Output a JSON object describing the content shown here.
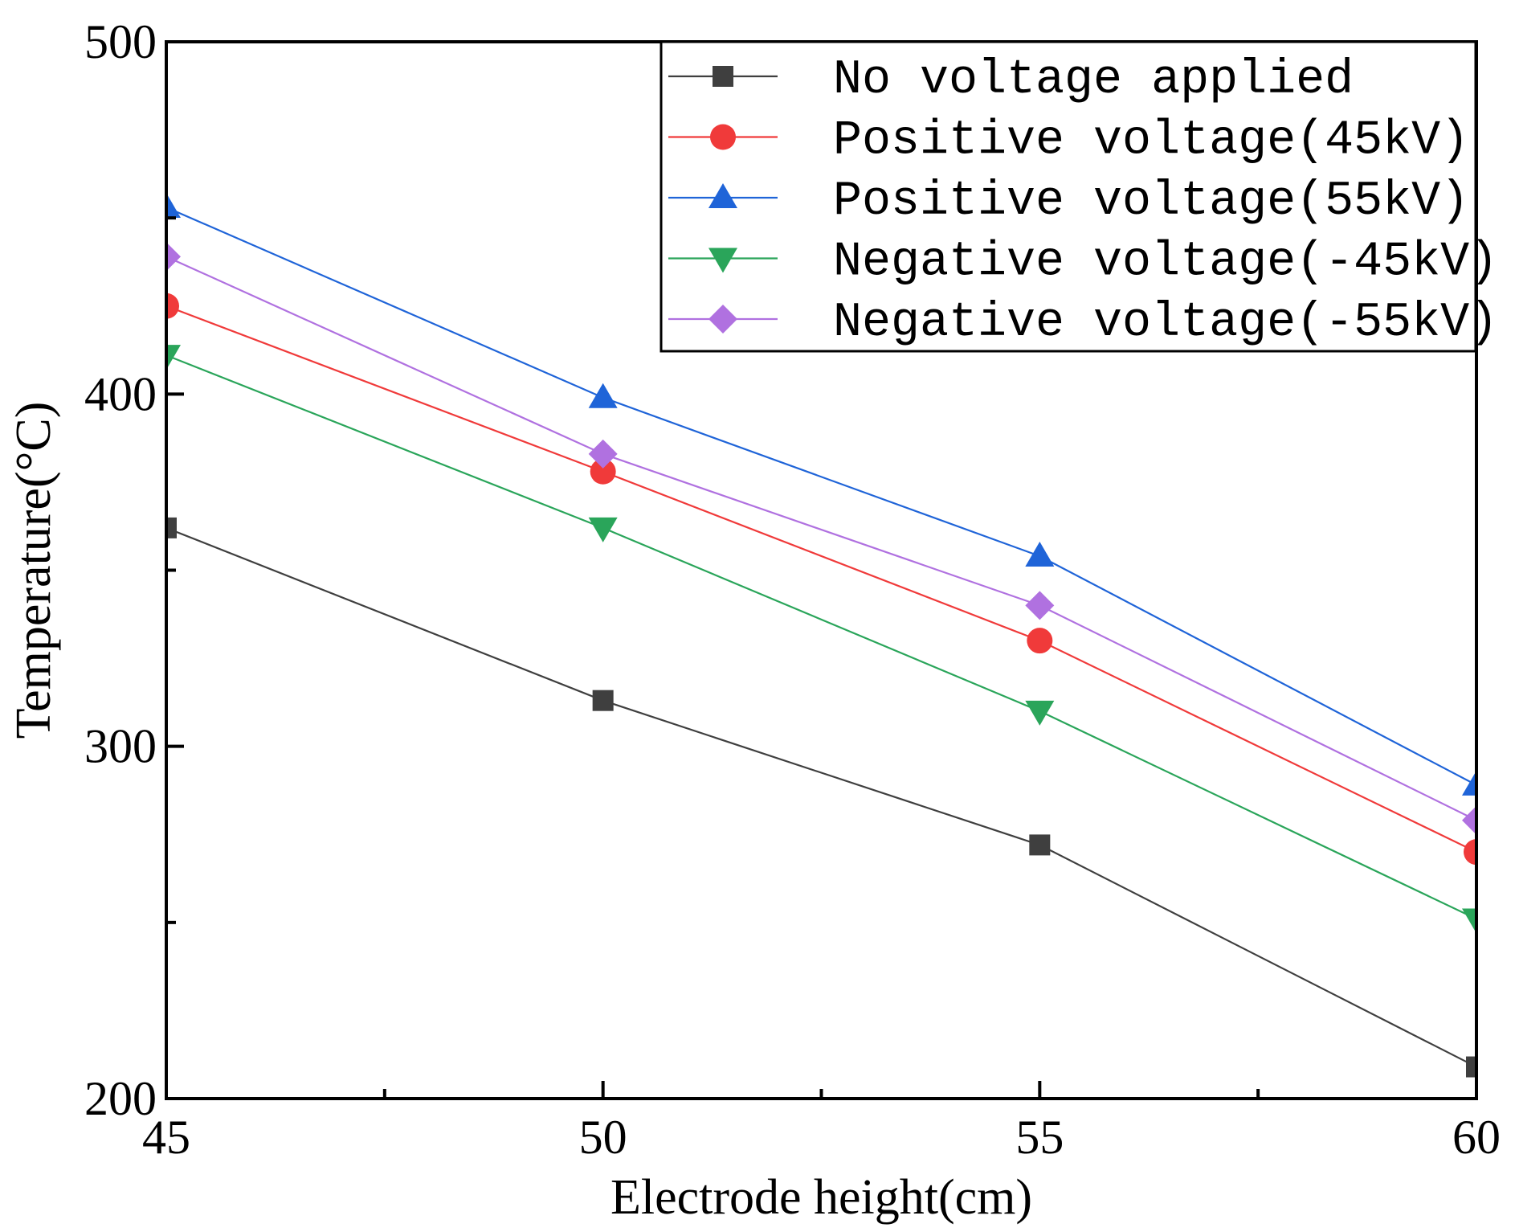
{
  "chart_data": {
    "type": "line",
    "title": "",
    "xlabel": "Electrode height(cm)",
    "ylabel": "Temperature(°C)",
    "xlim": [
      45,
      60
    ],
    "ylim": [
      200,
      500
    ],
    "x_ticks": [
      45,
      50,
      55,
      60
    ],
    "x_tick_labels": [
      "45",
      "50",
      "55",
      "60"
    ],
    "x_minor_ticks": [
      47.5,
      52.5,
      57.5
    ],
    "y_ticks": [
      200,
      300,
      400,
      500
    ],
    "y_tick_labels": [
      "200",
      "300",
      "400",
      "500"
    ],
    "y_minor_ticks": [
      250,
      350,
      450
    ],
    "grid": false,
    "legend_position": "top-right",
    "x": [
      45,
      50,
      55,
      60
    ],
    "series": [
      {
        "name": "No voltage applied",
        "marker": "square",
        "color": "#3f3f3f",
        "values": [
          362,
          313,
          272,
          209
        ]
      },
      {
        "name": "Positive voltage(45kV)",
        "marker": "circle",
        "color": "#f03a3a",
        "values": [
          425,
          378,
          330,
          270
        ]
      },
      {
        "name": "Positive voltage(55kV)",
        "marker": "triangle-up",
        "color": "#1f64d8",
        "values": [
          453,
          399,
          354,
          289
        ]
      },
      {
        "name": "Negative voltage(-45kV)",
        "marker": "triangle-down",
        "color": "#2aa55a",
        "values": [
          411,
          362,
          310,
          251
        ]
      },
      {
        "name": "Negative voltage(-55kV)",
        "marker": "diamond",
        "color": "#b071e0",
        "values": [
          439,
          383,
          340,
          279
        ]
      }
    ]
  }
}
